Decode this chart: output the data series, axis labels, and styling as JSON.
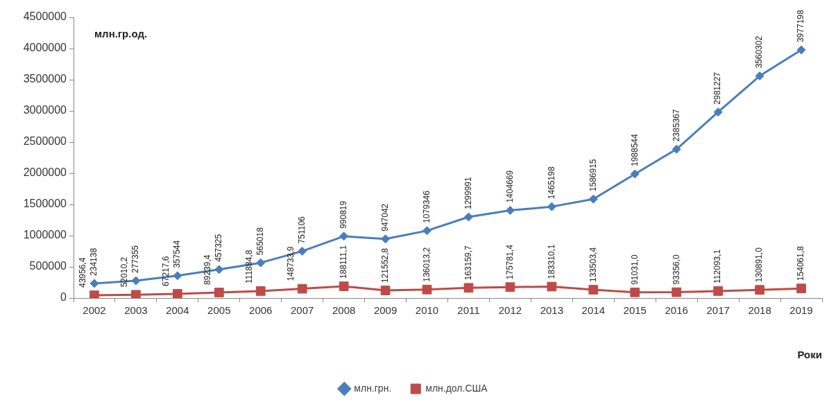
{
  "chart_data": {
    "type": "line",
    "ylabel": "млн.гр.од.",
    "xlabel": "Роки",
    "categories": [
      "2002",
      "2003",
      "2004",
      "2005",
      "2006",
      "2007",
      "2008",
      "2009",
      "2010",
      "2011",
      "2012",
      "2013",
      "2014",
      "2015",
      "2016",
      "2017",
      "2018",
      "2019"
    ],
    "ylim": [
      0,
      4500000
    ],
    "yticks": [
      0,
      500000,
      1000000,
      1500000,
      2000000,
      2500000,
      3000000,
      3500000,
      4000000,
      4500000
    ],
    "grid": false,
    "legend": "bottom",
    "line_style": "solid",
    "series": [
      {
        "name": "млн.грн.",
        "color": "#4a7ebb",
        "marker": "diamond",
        "values": [
          234138,
          277355,
          357544,
          457325,
          565018,
          751106,
          990819,
          947042,
          1079346,
          1299991,
          1404669,
          1465198,
          1586915,
          1988544,
          2385367,
          2981227,
          3560302,
          3977198
        ],
        "value_labels": [
          "234138",
          "277355",
          "357544",
          "457325",
          "565018",
          "751106",
          "990819",
          "947042",
          "1079346",
          "1299991",
          "1404669",
          "1465198",
          "1586915",
          "1988544",
          "2385367",
          "2981227",
          "3560302",
          "3977198"
        ]
      },
      {
        "name": "млн.дол.США",
        "color": "#be4b48",
        "marker": "square",
        "values": [
          43956.4,
          52010.2,
          67217.6,
          89239.4,
          111884.8,
          148733.9,
          188111.1,
          121552.8,
          136013.2,
          163159.7,
          175781.4,
          183310.1,
          133503.4,
          91031.0,
          93356.0,
          112093.1,
          130891.0,
          154061.8
        ],
        "value_labels": [
          "43956,4",
          "52010,2",
          "67217,6",
          "89239,4",
          "111884,8",
          "148733,9",
          "188111,1",
          "121552,8",
          "136013,2",
          "163159,7",
          "175781,4",
          "183310,1",
          "133503,4",
          "91031,0",
          "93356,0",
          "112093,1",
          "130891,0",
          "154061,8"
        ]
      }
    ]
  }
}
